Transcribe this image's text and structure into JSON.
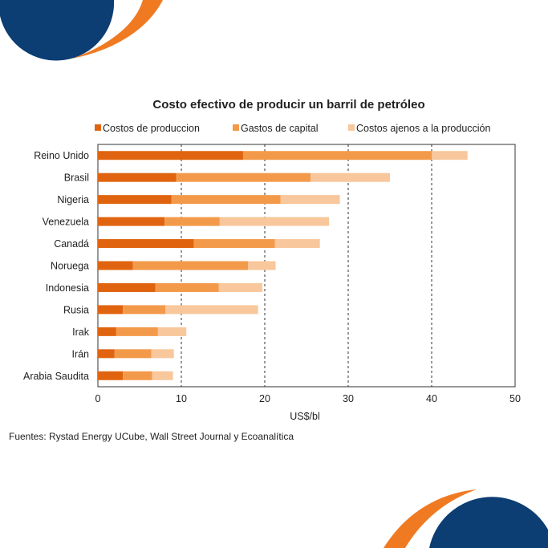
{
  "colors": {
    "production": "#e0640f",
    "capital": "#f39a4a",
    "other": "#f8c79b",
    "brand_blue": "#0c3d73",
    "brand_orange": "#f07a22"
  },
  "source_text": "Fuentes: Rystad Energy UCube, Wall Street Journal y Ecoanalítica",
  "chart_data": {
    "type": "bar",
    "orientation": "horizontal",
    "stacked": true,
    "title": "Costo efectivo de producir un barril de petróleo",
    "xlabel": "US$/bl",
    "ylabel": "",
    "xlim": [
      0,
      50
    ],
    "xticks": [
      "0",
      "10",
      "20",
      "30",
      "40",
      "50"
    ],
    "grid": "vertical-dashed",
    "legend_position": "top",
    "categories": [
      "Reino Unido",
      "Brasil",
      "Nigeria",
      "Venezuela",
      "Canadá",
      "Noruega",
      "Indonesia",
      "Rusia",
      "Irak",
      "Irán",
      "Arabia Saudita"
    ],
    "series": [
      {
        "name": "Costos de produccion",
        "color": "#e0640f",
        "values": [
          17.4,
          9.4,
          8.8,
          8.0,
          11.5,
          4.2,
          6.9,
          3.0,
          2.2,
          2.0,
          3.0
        ]
      },
      {
        "name": "Gastos de capital",
        "color": "#f39a4a",
        "values": [
          22.6,
          16.1,
          13.1,
          6.6,
          9.7,
          13.8,
          7.6,
          5.1,
          5.0,
          4.4,
          3.5
        ]
      },
      {
        "name": "Costos ajenos a la producción",
        "color": "#f8c79b",
        "values": [
          4.3,
          9.5,
          7.1,
          13.1,
          5.4,
          3.3,
          5.2,
          11.1,
          3.4,
          2.7,
          2.5
        ]
      }
    ]
  }
}
